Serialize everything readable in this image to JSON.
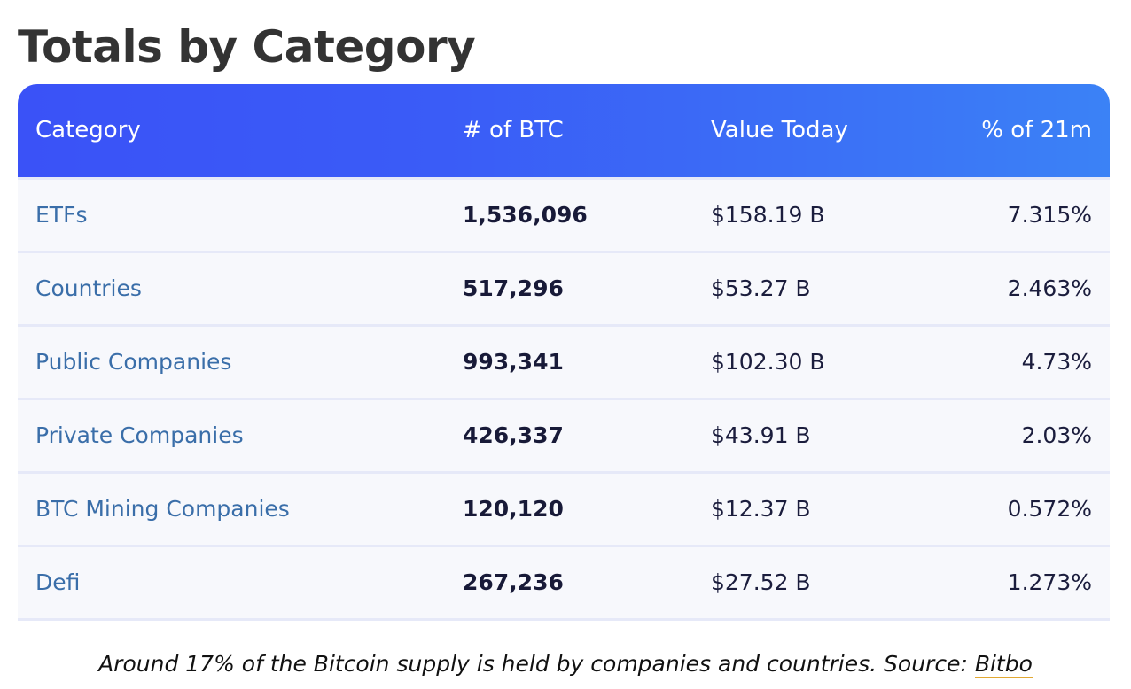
{
  "page": {
    "title": "Totals by Category",
    "caption_text": "Around 17% of the Bitcoin supply is held by companies and countries. Source: ",
    "caption_link": "Bitbo"
  },
  "colors": {
    "header_start": "#3a52f7",
    "header_end": "#3b82f6",
    "category_text": "#3a6ea9",
    "row_background": "#f7f8fc",
    "link_underline": "#e2a832"
  },
  "chart_data": {
    "type": "table",
    "title": "Totals by Category",
    "columns": [
      "Category",
      "# of BTC",
      "Value Today",
      "% of 21m"
    ],
    "rows": [
      {
        "category": "ETFs",
        "btc": "1,536,096",
        "value": "$158.19 B",
        "pct": "7.315%"
      },
      {
        "category": "Countries",
        "btc": "517,296",
        "value": "$53.27 B",
        "pct": "2.463%"
      },
      {
        "category": "Public Companies",
        "btc": "993,341",
        "value": "$102.30 B",
        "pct": "4.73%"
      },
      {
        "category": "Private Companies",
        "btc": "426,337",
        "value": "$43.91 B",
        "pct": "2.03%"
      },
      {
        "category": "BTC Mining Companies",
        "btc": "120,120",
        "value": "$12.37 B",
        "pct": "0.572%"
      },
      {
        "category": "Defi",
        "btc": "267,236",
        "value": "$27.52 B",
        "pct": "1.273%"
      }
    ]
  }
}
